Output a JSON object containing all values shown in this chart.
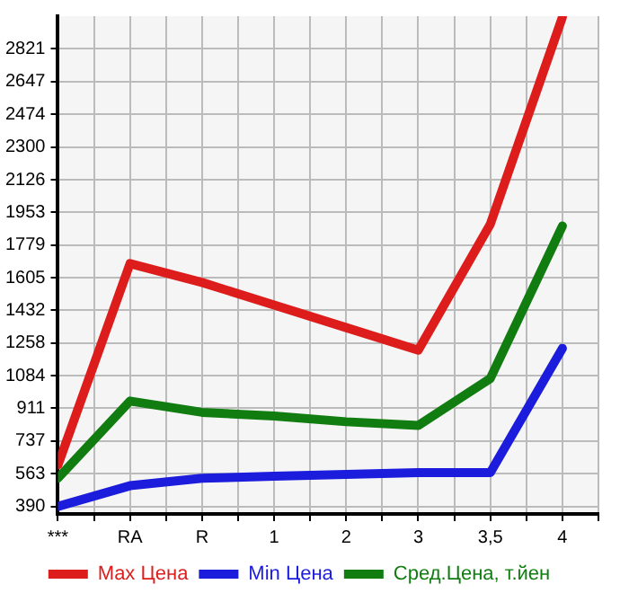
{
  "chart_data": {
    "type": "line",
    "categories": [
      "***",
      "RA",
      "R",
      "1",
      "2",
      "3",
      "3,5",
      "4"
    ],
    "series": [
      {
        "name": "Max Цена",
        "color": "#dd1c1c",
        "values": [
          610,
          1680,
          1580,
          1460,
          1340,
          1220,
          1890,
          2990
        ]
      },
      {
        "name": "Min Цена",
        "color": "#1c1cdd",
        "values": [
          390,
          500,
          540,
          550,
          560,
          570,
          570,
          1230
        ]
      },
      {
        "name": "Сред.Цена, т.йен",
        "color": "#117d11",
        "values": [
          540,
          950,
          890,
          870,
          840,
          820,
          1070,
          1880
        ]
      }
    ],
    "ylim": [
      350,
      2995
    ],
    "yticks": [
      390,
      563,
      737,
      911,
      1084,
      1258,
      1432,
      1605,
      1779,
      1953,
      2126,
      2300,
      2474,
      2647,
      2821
    ],
    "grid": true,
    "legend": "bottom",
    "marker": "none",
    "line_style": "solid"
  }
}
